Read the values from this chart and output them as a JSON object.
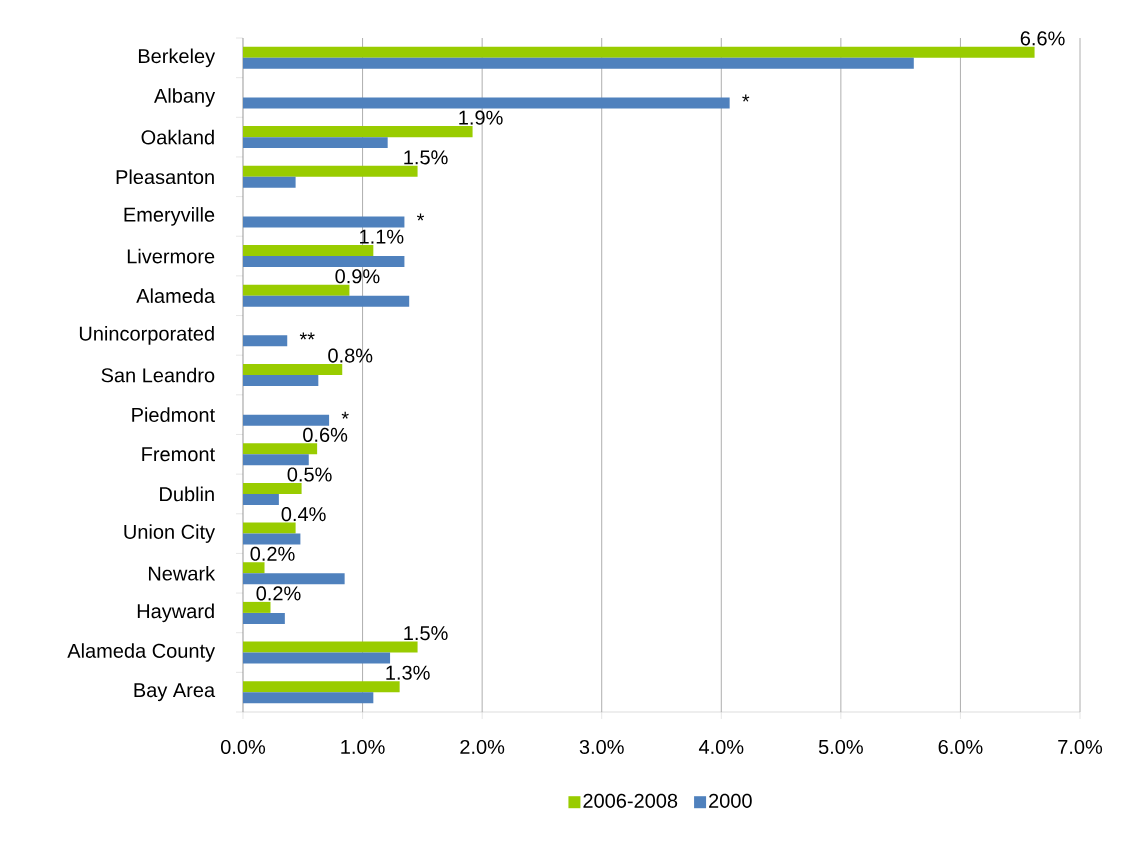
{
  "chart_data": {
    "type": "bar",
    "orientation": "horizontal",
    "categories": [
      "Berkeley",
      "Albany",
      "Oakland",
      "Pleasanton",
      "Emeryville",
      "Livermore",
      "Alameda",
      "Unincorporated",
      "San Leandro",
      "Piedmont",
      "Fremont",
      "Dublin",
      "Union City",
      "Newark",
      "Hayward",
      "Alameda County",
      "Bay Area"
    ],
    "series": [
      {
        "name": "2006-2008",
        "color": "#99cc00",
        "values": [
          6.62,
          null,
          1.92,
          1.46,
          null,
          1.09,
          0.89,
          null,
          0.83,
          null,
          0.62,
          0.49,
          0.44,
          0.18,
          0.23,
          1.46,
          1.31
        ],
        "value_labels": [
          "6.6%",
          null,
          "1.9%",
          "1.5%",
          null,
          "1.1%",
          "0.9%",
          null,
          "0.8%",
          null,
          "0.6%",
          "0.5%",
          "0.4%",
          "0.2%",
          "0.2%",
          "1.5%",
          "1.3%"
        ]
      },
      {
        "name": "2000",
        "color": "#4f81bd",
        "values": [
          5.61,
          4.07,
          1.21,
          0.44,
          1.35,
          1.35,
          1.39,
          0.37,
          0.63,
          0.72,
          0.55,
          0.3,
          0.48,
          0.85,
          0.35,
          1.23,
          1.09
        ]
      }
    ],
    "xlim": [
      0,
      7
    ],
    "xticks": [
      {
        "value": 0,
        "label": "0.0%"
      },
      {
        "value": 1,
        "label": "1.0%"
      },
      {
        "value": 2,
        "label": "2.0%"
      },
      {
        "value": 3,
        "label": "3.0%"
      },
      {
        "value": 4,
        "label": "4.0%"
      },
      {
        "value": 5,
        "label": "5.0%"
      },
      {
        "value": 6,
        "label": "6.0%"
      },
      {
        "value": 7,
        "label": "7.0%"
      }
    ],
    "annotations": [
      {
        "text": "*",
        "x": 4.07,
        "y": "Albany"
      },
      {
        "text": "*",
        "x": 1.35,
        "y": "Emeryville"
      },
      {
        "text": "**",
        "x": 0.37,
        "y": "Unincorporated"
      },
      {
        "text": "*",
        "x": 0.72,
        "y": "Piedmont"
      }
    ],
    "grid": "x",
    "legend": "bottom"
  }
}
